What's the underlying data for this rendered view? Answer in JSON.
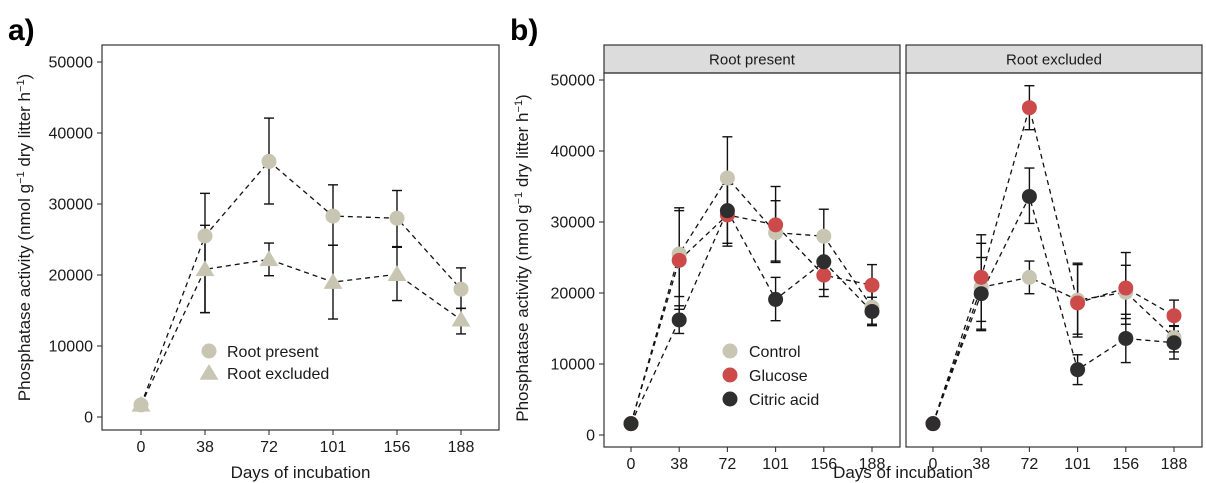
{
  "chart_data": [
    {
      "type": "line",
      "panel_label": "a)",
      "xlabel": "Days of incubation",
      "ylabel": "Phosphatase activity (nmol g",
      "ylabel_sup1": "−1",
      "ylabel_mid": " dry litter h",
      "ylabel_sup2": "−1",
      "ylabel_end": ")",
      "categories": [
        "0",
        "38",
        "72",
        "101",
        "156",
        "188"
      ],
      "ylim": [
        0,
        50000
      ],
      "yticks": [
        0,
        10000,
        20000,
        30000,
        40000,
        50000
      ],
      "ytick_labels": [
        "0",
        "10000",
        "20000",
        "30000",
        "40000",
        "50000"
      ],
      "grid": false,
      "legend_position": "bottom-center",
      "series": [
        {
          "name": "Root present",
          "marker": "circle",
          "color": "#c8c5b2",
          "values": [
            1700,
            25500,
            36000,
            28300,
            28000,
            18000
          ],
          "err_low": [
            1300,
            14700,
            30000,
            24200,
            24000,
            15300
          ],
          "err_high": [
            2100,
            31500,
            42100,
            32700,
            31900,
            21000
          ]
        },
        {
          "name": "Root excluded",
          "marker": "triangle",
          "color": "#c8c5b2",
          "values": [
            1700,
            20800,
            22200,
            19000,
            20100,
            13700
          ],
          "err_low": [
            1400,
            14700,
            19900,
            13800,
            16400,
            11700
          ],
          "err_high": [
            2000,
            27000,
            24500,
            24200,
            23900,
            15300
          ]
        }
      ]
    },
    {
      "type": "line",
      "panel_label": "b)",
      "xlabel": "Days of incubation",
      "ylabel": "Phosphatase activity (nmol g",
      "ylabel_sup1": "−1",
      "ylabel_mid": " dry litter h",
      "ylabel_sup2": "−1",
      "ylabel_end": ")",
      "categories": [
        "0",
        "38",
        "72",
        "101",
        "156",
        "188"
      ],
      "ylim": [
        0,
        50000
      ],
      "yticks": [
        0,
        10000,
        20000,
        30000,
        40000,
        50000
      ],
      "ytick_labels": [
        "0",
        "10000",
        "20000",
        "30000",
        "40000",
        "50000"
      ],
      "grid": false,
      "legend_position": "bottom-center (left facet)",
      "legend": [
        {
          "name": "Control",
          "color": "#c8c5b2"
        },
        {
          "name": "Glucose",
          "color": "#cd4a4a"
        },
        {
          "name": "Citric acid",
          "color": "#2e2e2e"
        }
      ],
      "facets": [
        {
          "strip": "Root present",
          "series": [
            {
              "name": "Control",
              "color": "#c8c5b2",
              "values": [
                1600,
                25500,
                36200,
                28500,
                28000,
                18000
              ],
              "err_low": [
                1300,
                19500,
                31000,
                24500,
                24200,
                15600
              ],
              "err_high": [
                1900,
                32000,
                42000,
                33000,
                31800,
                21000
              ]
            },
            {
              "name": "Glucose",
              "color": "#cd4a4a",
              "values": [
                1600,
                24600,
                31000,
                29600,
                22500,
                21100
              ],
              "err_low": [
                1300,
                17700,
                27000,
                24300,
                19500,
                18200
              ],
              "err_high": [
                1900,
                31600,
                35300,
                35000,
                25000,
                24000
              ]
            },
            {
              "name": "Citric acid",
              "color": "#2e2e2e",
              "values": [
                1600,
                16200,
                31600,
                19100,
                24400,
                17400
              ],
              "err_low": [
                1300,
                14300,
                26600,
                16100,
                20500,
                15400
              ],
              "err_high": [
                1900,
                18200,
                36200,
                22200,
                28000,
                19400
              ]
            }
          ]
        },
        {
          "strip": "Root excluded",
          "series": [
            {
              "name": "Control",
              "color": "#c8c5b2",
              "values": [
                1600,
                20800,
                22200,
                19000,
                20100,
                13700
              ],
              "err_low": [
                1300,
                14700,
                19900,
                13800,
                16400,
                11700
              ],
              "err_high": [
                1900,
                27000,
                24500,
                24200,
                23900,
                15300
              ]
            },
            {
              "name": "Glucose",
              "color": "#cd4a4a",
              "values": [
                1600,
                22200,
                46100,
                18600,
                20700,
                16800
              ],
              "err_low": [
                1300,
                16000,
                43000,
                14200,
                15600,
                14600
              ],
              "err_high": [
                1900,
                28200,
                49200,
                24000,
                25700,
                19000
              ]
            },
            {
              "name": "Citric acid",
              "color": "#2e2e2e",
              "values": [
                1600,
                19900,
                33600,
                9200,
                13600,
                13000
              ],
              "err_low": [
                1300,
                14900,
                29800,
                7100,
                10200,
                10700
              ],
              "err_high": [
                1900,
                25000,
                37600,
                11300,
                17000,
                15400
              ]
            }
          ]
        }
      ]
    }
  ]
}
